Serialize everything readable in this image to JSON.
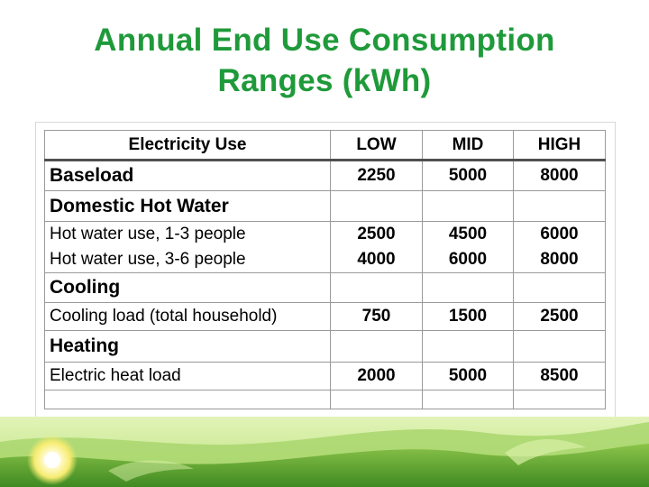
{
  "title": {
    "line1": "Annual End Use Consumption",
    "line2": "Ranges (kWh)"
  },
  "table": {
    "headers": [
      "Electricity Use",
      "LOW",
      "MID",
      "HIGH"
    ],
    "baseload": {
      "label": "Baseload",
      "low": "2250",
      "mid": "5000",
      "high": "8000"
    },
    "dhw": {
      "label": "Domestic Hot Water"
    },
    "hw1": {
      "label": "Hot water use, 1-3 people",
      "low": "2500",
      "mid": "4500",
      "high": "6000"
    },
    "hw2": {
      "label": "Hot water use, 3-6 people",
      "low": "4000",
      "mid": "6000",
      "high": "8000"
    },
    "cooling": {
      "label": "Cooling"
    },
    "cooling_load": {
      "label": "Cooling load (total household)",
      "low": "750",
      "mid": "1500",
      "high": "2500"
    },
    "heating": {
      "label": "Heating"
    },
    "heat_load": {
      "label": "Electric heat load",
      "low": "2000",
      "mid": "5000",
      "high": "8500"
    }
  },
  "colors": {
    "title": "#1f9a3a",
    "grass_dark": "#4c9a2a",
    "grass_light": "#b9e07a",
    "sun": "#fff6a8"
  }
}
